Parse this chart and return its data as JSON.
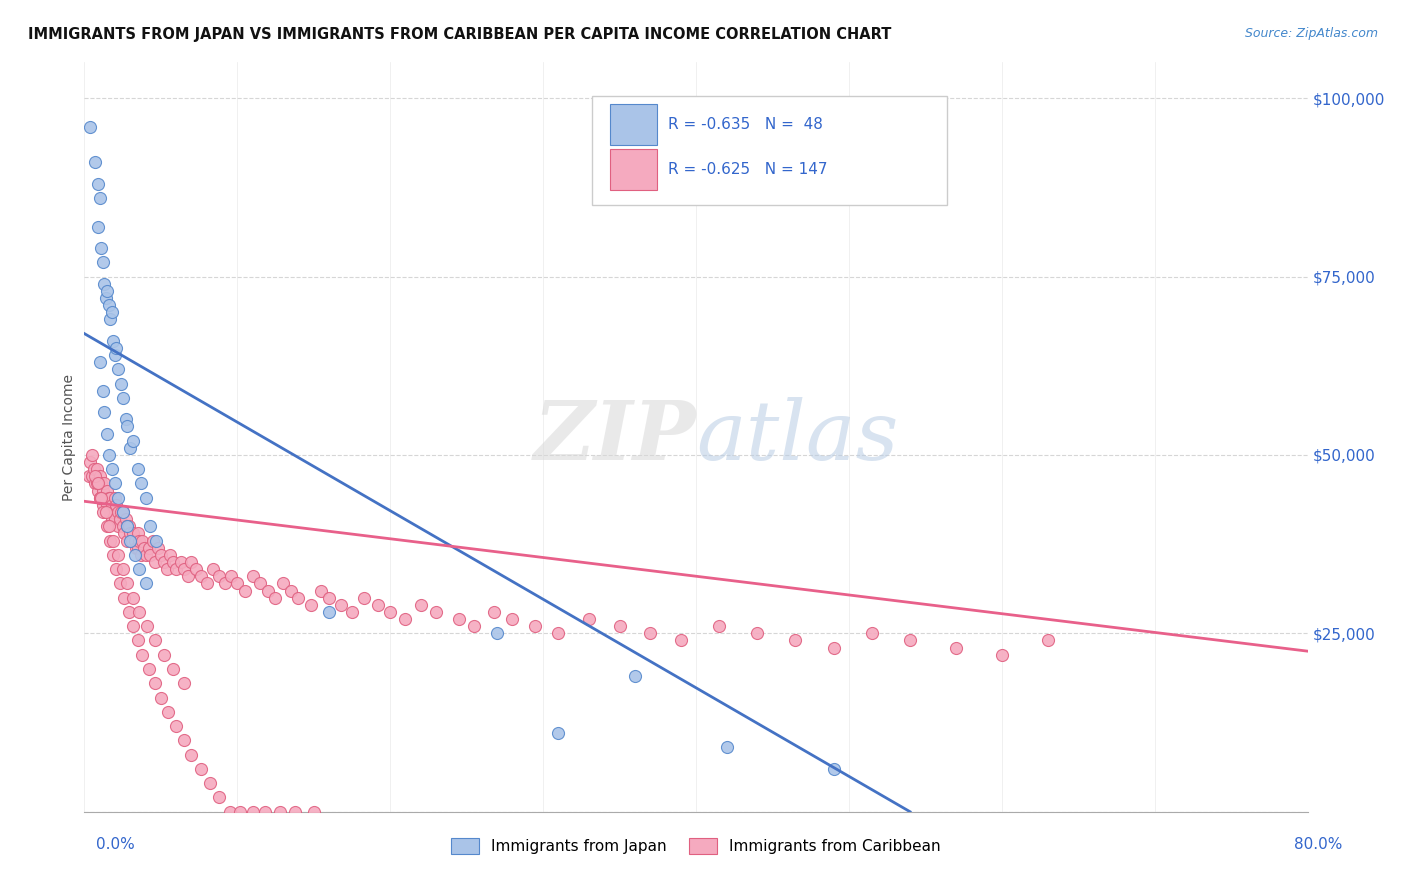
{
  "title": "IMMIGRANTS FROM JAPAN VS IMMIGRANTS FROM CARIBBEAN PER CAPITA INCOME CORRELATION CHART",
  "source": "Source: ZipAtlas.com",
  "ylabel": "Per Capita Income",
  "yticks": [
    0,
    25000,
    50000,
    75000,
    100000
  ],
  "ytick_labels": [
    "",
    "$25,000",
    "$50,000",
    "$75,000",
    "$100,000"
  ],
  "xlim": [
    0.0,
    0.8
  ],
  "ylim": [
    0,
    105000
  ],
  "japan_color": "#aac4e8",
  "carib_color": "#f5aabf",
  "japan_edge_color": "#5588cc",
  "carib_edge_color": "#e06080",
  "japan_line_color": "#4472c4",
  "carib_line_color": "#e8608a",
  "background_color": "#ffffff",
  "grid_color": "#cccccc",
  "japan_line_x0": 0.0,
  "japan_line_y0": 67000,
  "japan_line_x1": 0.54,
  "japan_line_y1": 0,
  "carib_line_x0": 0.0,
  "carib_line_y0": 43500,
  "carib_line_x1": 0.8,
  "carib_line_y1": 22500,
  "japan_scatter_x": [
    0.004,
    0.007,
    0.009,
    0.009,
    0.01,
    0.011,
    0.012,
    0.013,
    0.014,
    0.015,
    0.016,
    0.017,
    0.018,
    0.019,
    0.02,
    0.021,
    0.022,
    0.024,
    0.025,
    0.027,
    0.028,
    0.03,
    0.032,
    0.035,
    0.037,
    0.04,
    0.043,
    0.047,
    0.01,
    0.012,
    0.013,
    0.015,
    0.016,
    0.018,
    0.02,
    0.022,
    0.025,
    0.028,
    0.03,
    0.033,
    0.036,
    0.04,
    0.16,
    0.27,
    0.31,
    0.36,
    0.42,
    0.49
  ],
  "japan_scatter_y": [
    96000,
    91000,
    88000,
    82000,
    86000,
    79000,
    77000,
    74000,
    72000,
    73000,
    71000,
    69000,
    70000,
    66000,
    64000,
    65000,
    62000,
    60000,
    58000,
    55000,
    54000,
    51000,
    52000,
    48000,
    46000,
    44000,
    40000,
    38000,
    63000,
    59000,
    56000,
    53000,
    50000,
    48000,
    46000,
    44000,
    42000,
    40000,
    38000,
    36000,
    34000,
    32000,
    28000,
    25000,
    11000,
    19000,
    9000,
    6000
  ],
  "carib_scatter_x": [
    0.003,
    0.004,
    0.005,
    0.006,
    0.007,
    0.008,
    0.009,
    0.01,
    0.01,
    0.011,
    0.012,
    0.012,
    0.013,
    0.013,
    0.014,
    0.015,
    0.015,
    0.016,
    0.017,
    0.017,
    0.018,
    0.018,
    0.019,
    0.02,
    0.02,
    0.021,
    0.022,
    0.022,
    0.023,
    0.024,
    0.025,
    0.025,
    0.026,
    0.027,
    0.028,
    0.028,
    0.029,
    0.03,
    0.031,
    0.032,
    0.033,
    0.034,
    0.035,
    0.035,
    0.036,
    0.037,
    0.038,
    0.039,
    0.04,
    0.042,
    0.043,
    0.045,
    0.046,
    0.048,
    0.05,
    0.052,
    0.054,
    0.056,
    0.058,
    0.06,
    0.063,
    0.065,
    0.068,
    0.07,
    0.073,
    0.076,
    0.08,
    0.084,
    0.088,
    0.092,
    0.096,
    0.1,
    0.105,
    0.11,
    0.115,
    0.12,
    0.125,
    0.13,
    0.135,
    0.14,
    0.148,
    0.155,
    0.16,
    0.168,
    0.175,
    0.183,
    0.192,
    0.2,
    0.21,
    0.22,
    0.23,
    0.245,
    0.255,
    0.268,
    0.28,
    0.295,
    0.31,
    0.33,
    0.35,
    0.37,
    0.39,
    0.415,
    0.44,
    0.465,
    0.49,
    0.515,
    0.54,
    0.57,
    0.6,
    0.63,
    0.008,
    0.01,
    0.012,
    0.015,
    0.017,
    0.019,
    0.021,
    0.023,
    0.026,
    0.029,
    0.032,
    0.035,
    0.038,
    0.042,
    0.046,
    0.05,
    0.055,
    0.06,
    0.065,
    0.07,
    0.076,
    0.082,
    0.088,
    0.095,
    0.102,
    0.11,
    0.118,
    0.128,
    0.138,
    0.15,
    0.005,
    0.007,
    0.009,
    0.011,
    0.014,
    0.016,
    0.019,
    0.022,
    0.025,
    0.028,
    0.032,
    0.036,
    0.041,
    0.046,
    0.052,
    0.058,
    0.065
  ],
  "carib_scatter_y": [
    47000,
    49000,
    47000,
    48000,
    46000,
    48000,
    45000,
    47000,
    44000,
    46000,
    45000,
    43000,
    46000,
    44000,
    42000,
    45000,
    43000,
    44000,
    42000,
    44000,
    41000,
    43000,
    42000,
    44000,
    41000,
    43000,
    42000,
    40000,
    41000,
    42000,
    40000,
    42000,
    39000,
    41000,
    40000,
    38000,
    40000,
    39000,
    38000,
    39000,
    38000,
    37000,
    39000,
    37000,
    38000,
    36000,
    38000,
    37000,
    36000,
    37000,
    36000,
    38000,
    35000,
    37000,
    36000,
    35000,
    34000,
    36000,
    35000,
    34000,
    35000,
    34000,
    33000,
    35000,
    34000,
    33000,
    32000,
    34000,
    33000,
    32000,
    33000,
    32000,
    31000,
    33000,
    32000,
    31000,
    30000,
    32000,
    31000,
    30000,
    29000,
    31000,
    30000,
    29000,
    28000,
    30000,
    29000,
    28000,
    27000,
    29000,
    28000,
    27000,
    26000,
    28000,
    27000,
    26000,
    25000,
    27000,
    26000,
    25000,
    24000,
    26000,
    25000,
    24000,
    23000,
    25000,
    24000,
    23000,
    22000,
    24000,
    46000,
    44000,
    42000,
    40000,
    38000,
    36000,
    34000,
    32000,
    30000,
    28000,
    26000,
    24000,
    22000,
    20000,
    18000,
    16000,
    14000,
    12000,
    10000,
    8000,
    6000,
    4000,
    2000,
    0,
    -2000,
    -4000,
    -6000,
    -8000,
    -10000,
    -12000,
    50000,
    47000,
    46000,
    44000,
    42000,
    40000,
    38000,
    36000,
    34000,
    32000,
    30000,
    28000,
    26000,
    24000,
    22000,
    20000,
    18000
  ]
}
